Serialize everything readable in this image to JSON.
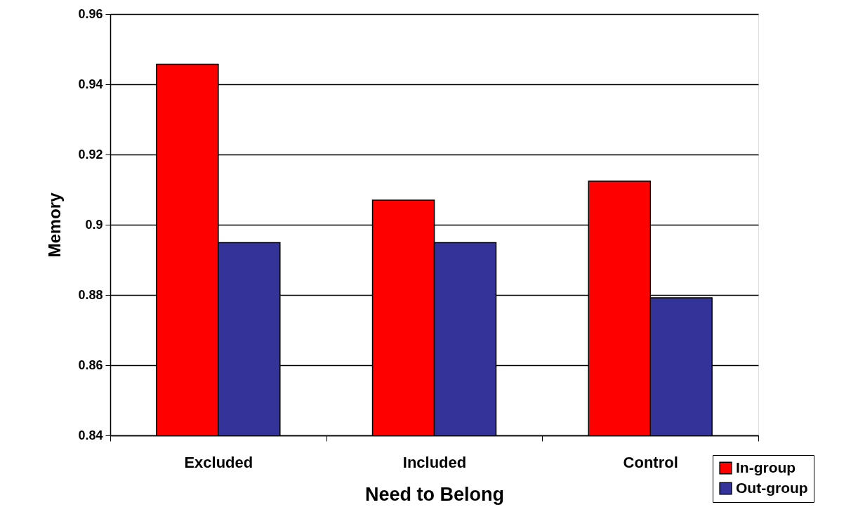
{
  "chart_data": {
    "type": "bar",
    "xlabel": "Need to Belong",
    "ylabel": "Memory",
    "categories": [
      "Excluded",
      "Included",
      "Control"
    ],
    "series": [
      {
        "name": "In-group",
        "color": "#ff0000",
        "values": [
          0.9457,
          0.907,
          0.9124
        ]
      },
      {
        "name": "Out-group",
        "color": "#333399",
        "values": [
          0.8949,
          0.8949,
          0.8792
        ]
      }
    ],
    "ylim": [
      0.84,
      0.96
    ],
    "yticks": [
      0.84,
      0.86,
      0.88,
      {
        "value": 0.9,
        "label": "0.9"
      },
      0.92,
      0.94,
      0.96
    ],
    "grid": "y",
    "legend": "bottom right"
  }
}
